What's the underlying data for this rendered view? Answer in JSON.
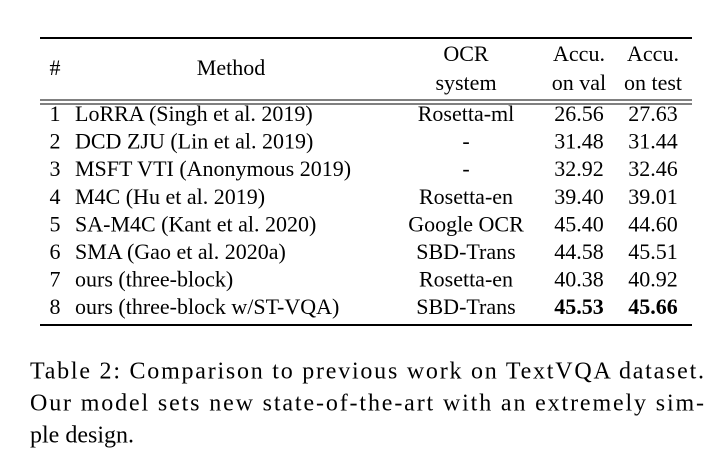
{
  "table": {
    "header": [
      "#",
      "Method",
      [
        "OCR",
        "system"
      ],
      [
        "Accu.",
        "on val"
      ],
      [
        "Accu.",
        "on test"
      ]
    ],
    "rows": [
      [
        "1",
        "LoRRA (Singh et al. 2019)",
        "Rosetta-ml",
        "26.56",
        "27.63"
      ],
      [
        "2",
        "DCD ZJU (Lin et al. 2019)",
        "-",
        "31.48",
        "31.44"
      ],
      [
        "3",
        "MSFT VTI (Anonymous 2019)",
        "-",
        "32.92",
        "32.46"
      ],
      [
        "4",
        "M4C (Hu et al. 2019)",
        "Rosetta-en",
        "39.40",
        "39.01"
      ],
      [
        "5",
        "SA-M4C (Kant et al. 2020)",
        "Google OCR",
        "45.40",
        "44.60"
      ],
      [
        "6",
        "SMA (Gao et al. 2020a)",
        "SBD-Trans",
        "44.58",
        "45.51"
      ],
      [
        "7",
        "ours (three-block)",
        "Rosetta-en",
        "40.38",
        "40.92"
      ],
      [
        "8",
        "ours (three-block w/ST-VQA)",
        "SBD-Trans",
        "45.53",
        "45.66"
      ]
    ]
  },
  "caption": [
    "Table 2: Comparison to previous work on TextVQA dataset.",
    "Our model sets new state-of-the-art with an extremely sim-",
    "ple design."
  ]
}
